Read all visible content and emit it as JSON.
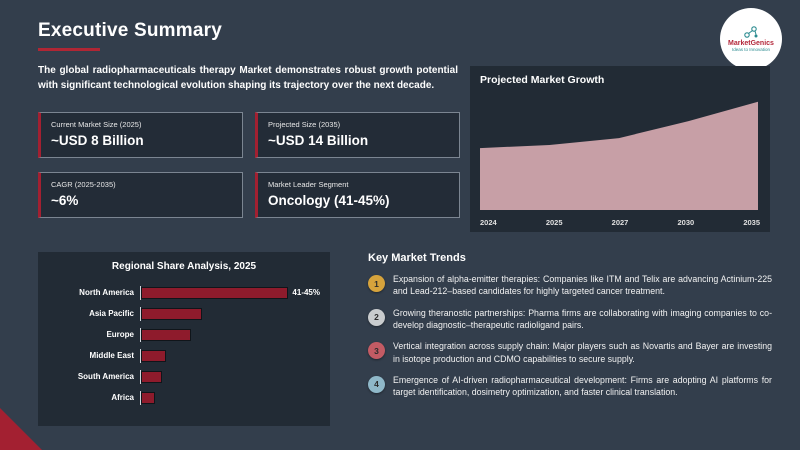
{
  "title": "Executive Summary",
  "logo": {
    "brand": "MarketGenics",
    "tagline": "Ideas to Innovation"
  },
  "intro": "The global radiopharmaceuticals therapy Market demonstrates robust growth potential with significant technological evolution shaping its trajectory over the next decade.",
  "stats": [
    {
      "label": "Current Market Size (2025)",
      "value": "~USD 8 Billion"
    },
    {
      "label": "Projected Size (2035)",
      "value": "~USD 14 Billion"
    },
    {
      "label": "CAGR (2025-2035)",
      "value": "~6%"
    },
    {
      "label": "Market Leader Segment",
      "value": "Oncology (41-45%)"
    }
  ],
  "chart_data": [
    {
      "type": "area",
      "title": "Projected Market Growth",
      "x": [
        "2024",
        "2025",
        "2027",
        "2030",
        "2035"
      ],
      "values": [
        8,
        8.4,
        9.3,
        11.5,
        14
      ],
      "ylim": [
        0,
        15
      ],
      "area_color": "#c79fa6",
      "legend": "none",
      "grid": "off"
    },
    {
      "type": "bar",
      "title": "Regional Share Analysis, 2025",
      "categories": [
        "North America",
        "Asia Pacific",
        "Europe",
        "Middle East",
        "South America",
        "Africa"
      ],
      "values": [
        43,
        17,
        14,
        7,
        6,
        4
      ],
      "bar_labels": [
        "41-45%",
        "",
        "",
        "",
        "",
        ""
      ],
      "bar_color": "#8e1b2c",
      "xlim": [
        0,
        50
      ],
      "orientation": "horizontal"
    }
  ],
  "trends": {
    "heading": "Key Market Trends",
    "items": [
      {
        "num": "1",
        "color": "#d6a33c",
        "text": "Expansion of alpha-emitter therapies: Companies like ITM and Telix are advancing Actinium-225 and Lead-212–based candidates for highly targeted cancer treatment."
      },
      {
        "num": "2",
        "color": "#c9ccce",
        "text": "Growing theranostic partnerships: Pharma firms are collaborating with imaging companies to co-develop diagnostic–therapeutic radioligand pairs."
      },
      {
        "num": "3",
        "color": "#c35b64",
        "text": "Vertical integration across supply chain: Major players such as Novartis and Bayer are investing in isotope production and CDMO capabilities to secure supply."
      },
      {
        "num": "4",
        "color": "#8fb8c9",
        "text": "Emergence of AI-driven radiopharmaceutical development: Firms are adopting AI platforms for target identification, dosimetry optimization, and faster clinical translation."
      }
    ]
  }
}
